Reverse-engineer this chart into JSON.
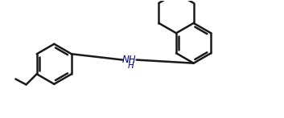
{
  "bg_color": "#ffffff",
  "line_color": "#1a1a1a",
  "nh_color": "#00008b",
  "line_width": 1.8,
  "fig_width": 3.53,
  "fig_height": 1.47,
  "dpi": 100
}
